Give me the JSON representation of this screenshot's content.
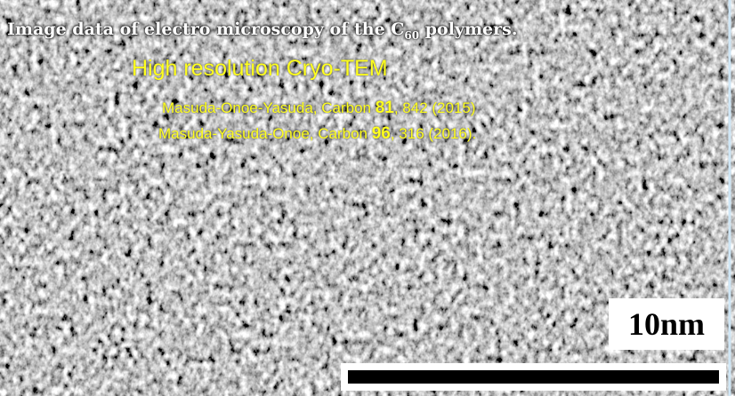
{
  "title": {
    "text": "Image data of electro microscopy of the C",
    "subscript": "60",
    "tail": " polymers."
  },
  "subtitle": "High resolution Cryo-TEM",
  "references": [
    {
      "authors": "Masuda-Onoe-Yasuda, Carbon ",
      "volume": "81",
      "pages": ", 842 (2015)"
    },
    {
      "authors": "Masuda-Yasuda-Onoe, Carbon ",
      "volume": "96",
      "pages": ", 316 (2016)."
    }
  ],
  "scale_bar": {
    "label": "10nm"
  }
}
